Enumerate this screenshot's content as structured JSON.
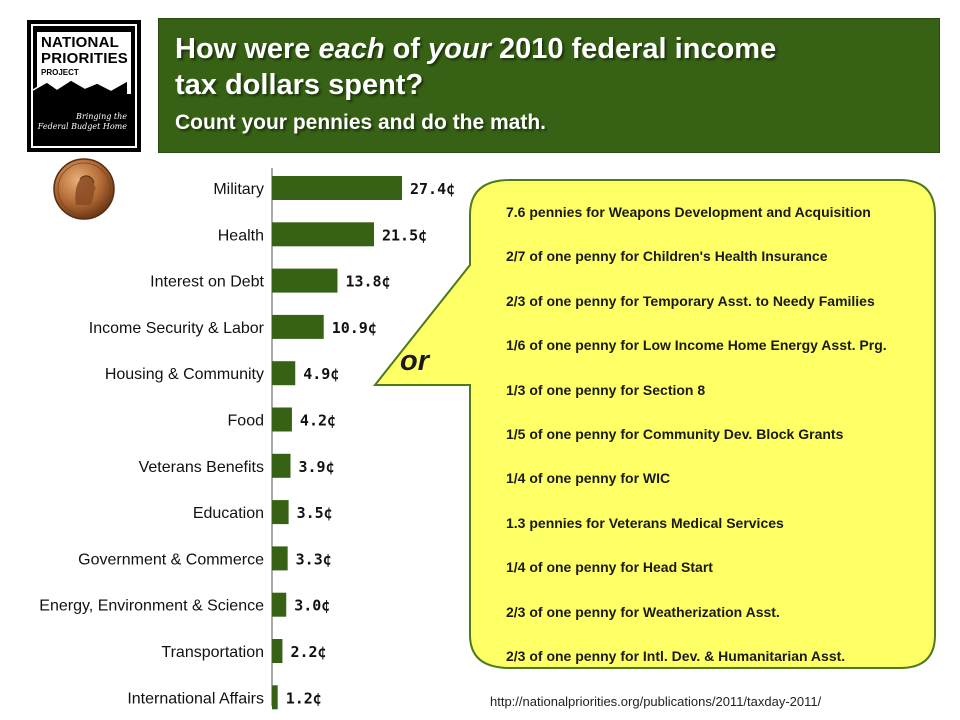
{
  "logo": {
    "line1": "NATIONAL",
    "line2": "PRIORITIES",
    "line3": "PROJECT",
    "tagline1": "Bringing the",
    "tagline2": "Federal Budget Home"
  },
  "header": {
    "title_part1": "How were ",
    "title_em1": "each",
    "title_part2": " of ",
    "title_em2": "your",
    "title_part3": " 2010 federal income tax dollars spent?",
    "subtitle": "Count your pennies and do the math."
  },
  "colors": {
    "header_bg": "#376216",
    "bar": "#376216",
    "bubble": "#ffff66",
    "bubble_border": "#4e7a1c"
  },
  "icons": {
    "penny": "lincoln-penny-icon"
  },
  "chart_data": {
    "type": "bar",
    "orientation": "horizontal",
    "categories": [
      "Military",
      "Health",
      "Interest on Debt",
      "Income Security & Labor",
      "Housing & Community",
      "Food",
      "Veterans Benefits",
      "Education",
      "Government & Commerce",
      "Energy, Environment & Science",
      "Transportation",
      "International Affairs"
    ],
    "values": [
      27.4,
      21.5,
      13.8,
      10.9,
      4.9,
      4.2,
      3.9,
      3.5,
      3.3,
      3.0,
      2.2,
      1.2
    ],
    "labels": [
      "27.4¢",
      "21.5¢",
      "13.8¢",
      "10.9¢",
      "4.9¢",
      "4.2¢",
      "3.9¢",
      "3.5¢",
      "3.3¢",
      "3.0¢",
      "2.2¢",
      "1.2¢"
    ],
    "title": "",
    "xlabel": "",
    "ylabel": "",
    "xlim": [
      0,
      27.4
    ],
    "grid": false,
    "legend": "none"
  },
  "callout": {
    "or_label": "or",
    "items": [
      "7.6 pennies for Weapons Development and Acquisition",
      "2/7 of one penny for Children's Health Insurance",
      "2/3 of one penny for Temporary Asst. to Needy Families",
      "1/6 of one penny for Low Income Home Energy Asst. Prg.",
      "1/3 of one penny for Section 8",
      "1/5 of one penny for Community Dev. Block Grants",
      "1/4 of one penny for WIC",
      "1.3 pennies for Veterans Medical Services",
      "1/4 of one penny for Head Start",
      "2/3 of one penny for Weatherization Asst.",
      "2/3 of one penny for Intl. Dev. & Humanitarian Asst."
    ]
  },
  "source": "http://nationalpriorities.org/publications/2011/taxday-2011/"
}
